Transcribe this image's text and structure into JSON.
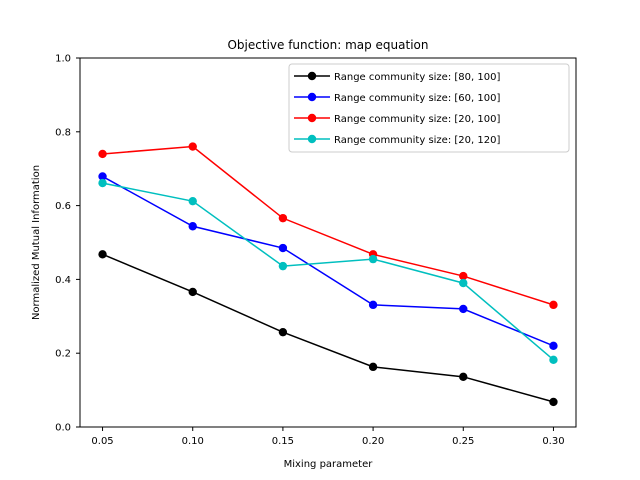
{
  "chart_data": {
    "type": "line",
    "title": "Objective function: map equation",
    "xlabel": "Mixing parameter",
    "ylabel": "Normalized Mutual Information",
    "x": [
      0.05,
      0.1,
      0.15,
      0.2,
      0.25,
      0.3
    ],
    "xticks": [
      "0.05",
      "0.10",
      "0.15",
      "0.20",
      "0.25",
      "0.30"
    ],
    "xlim": [
      0.0375,
      0.3125
    ],
    "ylim": [
      0.0,
      1.0
    ],
    "yticks": [
      "0.0",
      "0.2",
      "0.4",
      "0.6",
      "0.8",
      "1.0"
    ],
    "grid": false,
    "legend_position": "top-right",
    "series": [
      {
        "name": "Range community size: [80, 100]",
        "color": "#000000",
        "values": [
          0.468,
          0.366,
          0.257,
          0.163,
          0.136,
          0.068
        ]
      },
      {
        "name": "Range community size: [60, 100]",
        "color": "#0000ff",
        "values": [
          0.679,
          0.544,
          0.485,
          0.331,
          0.32,
          0.22
        ]
      },
      {
        "name": "Range community size: [20, 100]",
        "color": "#ff0000",
        "values": [
          0.74,
          0.76,
          0.566,
          0.468,
          0.409,
          0.331
        ]
      },
      {
        "name": "Range community size: [20, 120]",
        "color": "#00bfbf",
        "values": [
          0.661,
          0.612,
          0.436,
          0.455,
          0.39,
          0.182
        ]
      }
    ]
  }
}
